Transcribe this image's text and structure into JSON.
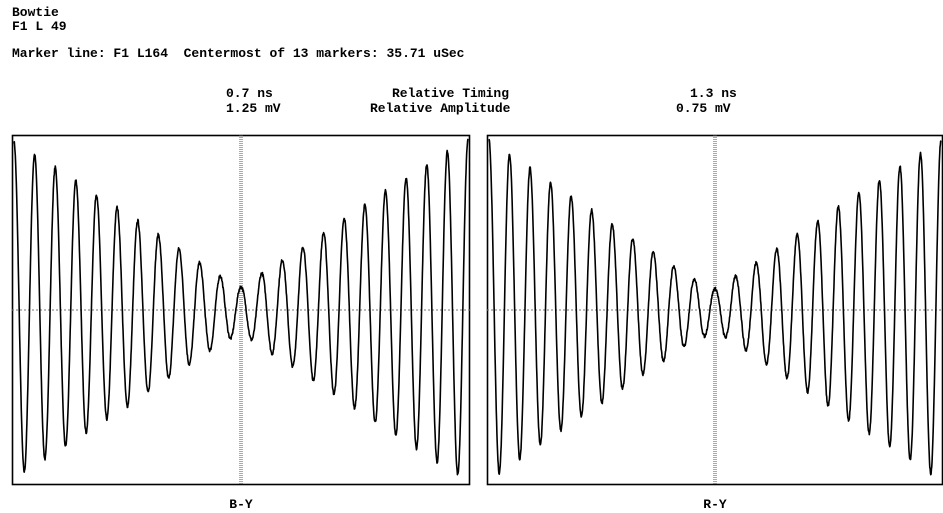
{
  "header": {
    "title": "Bowtie",
    "line_id": "F1 L 49",
    "marker_line": "Marker line: F1 L164  Centermost of 13 markers: 35.71 uSec"
  },
  "measurements": {
    "left_timing": "0.7 ns",
    "left_amplitude": "1.25 mV",
    "timing_label": "Relative Timing",
    "amplitude_label": "Relative Amplitude",
    "right_timing": "1.3 ns",
    "right_amplitude": "0.75 mV"
  },
  "colors": {
    "trace": "#000000",
    "frame": "#000000",
    "marker": "#555555",
    "baseline": "#777777",
    "background": "#ffffff"
  },
  "chart_data": [
    {
      "type": "line",
      "xlabel": "B-Y",
      "ylim": [
        -1,
        1
      ],
      "grid": false,
      "series": [
        {
          "x": [
            -1,
            -0.875,
            -0.75,
            -0.625,
            -0.5,
            -0.375,
            -0.25,
            -0.125,
            0,
            0.125,
            0.25,
            0.375,
            0.5,
            0.625,
            0.75,
            0.875,
            1
          ],
          "values": [
            0.96,
            0.86,
            0.76,
            0.65,
            0.55,
            0.44,
            0.33,
            0.22,
            0.13,
            0.24,
            0.34,
            0.45,
            0.56,
            0.67,
            0.77,
            0.88,
            0.97
          ]
        }
      ]
    },
    {
      "type": "line",
      "xlabel": "R-Y",
      "ylim": [
        -1,
        1
      ],
      "grid": false,
      "series": [
        {
          "x": [
            -1,
            -0.875,
            -0.75,
            -0.625,
            -0.5,
            -0.375,
            -0.25,
            -0.125,
            0,
            0.125,
            0.25,
            0.375,
            0.5,
            0.625,
            0.75,
            0.875,
            1
          ],
          "values": [
            0.97,
            0.86,
            0.75,
            0.64,
            0.53,
            0.42,
            0.31,
            0.2,
            0.12,
            0.22,
            0.33,
            0.44,
            0.55,
            0.66,
            0.76,
            0.87,
            0.97
          ]
        }
      ]
    }
  ]
}
